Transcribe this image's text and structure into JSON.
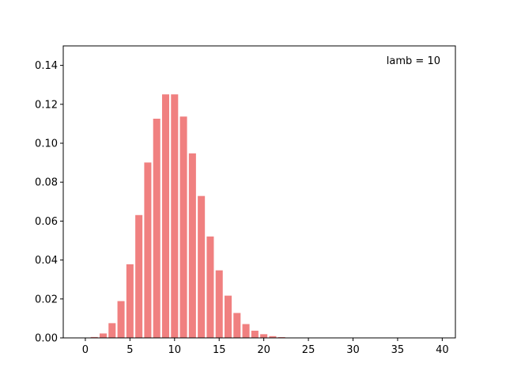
{
  "chart_data": {
    "type": "bar",
    "annotation": "lamb = 10",
    "x": [
      0,
      1,
      2,
      3,
      4,
      5,
      6,
      7,
      8,
      9,
      10,
      11,
      12,
      13,
      14,
      15,
      16,
      17,
      18,
      19,
      20,
      21,
      22,
      23,
      24,
      25,
      26,
      27,
      28,
      29,
      30,
      31,
      32,
      33,
      34,
      35,
      36,
      37,
      38,
      39
    ],
    "values": [
      4.54e-05,
      0.000454,
      0.00227,
      0.00757,
      0.0189,
      0.0378,
      0.0631,
      0.0901,
      0.1126,
      0.1251,
      0.1251,
      0.1137,
      0.0948,
      0.0729,
      0.0521,
      0.0347,
      0.0217,
      0.0128,
      0.0071,
      0.0037,
      0.0019,
      0.00089,
      0.0004,
      0.00018,
      7e-05,
      3e-05,
      1e-05,
      0,
      0,
      0,
      0,
      0,
      0,
      0,
      0,
      0,
      0,
      0,
      0,
      0
    ],
    "color": "#f08080",
    "bar_width": 0.8,
    "xlim": [
      -2.475,
      41.475
    ],
    "xticks": [
      0,
      5,
      10,
      15,
      20,
      25,
      30,
      35,
      40
    ],
    "ylim": [
      0,
      0.15
    ],
    "yticks": [
      {
        "value": 0,
        "label": "0.00"
      },
      {
        "value": 0.02,
        "label": "0.02"
      },
      {
        "value": 0.04,
        "label": "0.04"
      },
      {
        "value": 0.06,
        "label": "0.06"
      },
      {
        "value": 0.08,
        "label": "0.08"
      },
      {
        "value": 0.1,
        "label": "0.10"
      },
      {
        "value": 0.12,
        "label": "0.12"
      },
      {
        "value": 0.14,
        "label": "0.14"
      }
    ]
  }
}
